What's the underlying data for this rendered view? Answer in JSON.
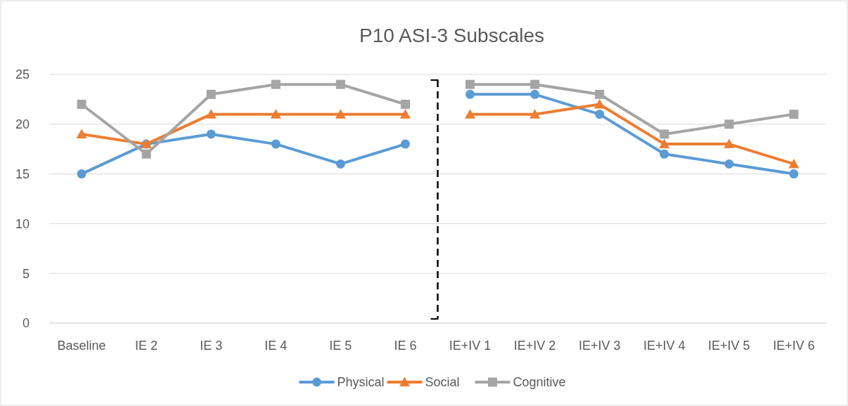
{
  "chart_data": {
    "type": "line",
    "title": "P10 ASI-3 Subscales",
    "categories": [
      "Baseline",
      "IE 2",
      "IE 3",
      "IE 4",
      "IE 5",
      "IE 6",
      "IE+IV 1",
      "IE+IV 2",
      "IE+IV 3",
      "IE+IV 4",
      "IE+IV 5",
      "IE+IV 6"
    ],
    "series": [
      {
        "name": "Physical",
        "color": "#5b9bd5",
        "marker": "circle",
        "values": [
          15,
          18,
          19,
          18,
          16,
          18,
          23,
          23,
          21,
          17,
          16,
          15
        ]
      },
      {
        "name": "Social",
        "color": "#ed7d31",
        "marker": "triangle",
        "values": [
          19,
          18,
          21,
          21,
          21,
          21,
          21,
          21,
          22,
          18,
          18,
          16
        ]
      },
      {
        "name": "Cognitive",
        "color": "#a5a5a5",
        "marker": "square",
        "values": [
          22,
          17,
          23,
          24,
          24,
          22,
          24,
          24,
          23,
          19,
          20,
          21
        ]
      }
    ],
    "ylim": [
      0,
      25
    ],
    "yticks": [
      0,
      5,
      10,
      15,
      20,
      25
    ],
    "grid": "y",
    "legend": "bottom",
    "line_style": "solid"
  }
}
